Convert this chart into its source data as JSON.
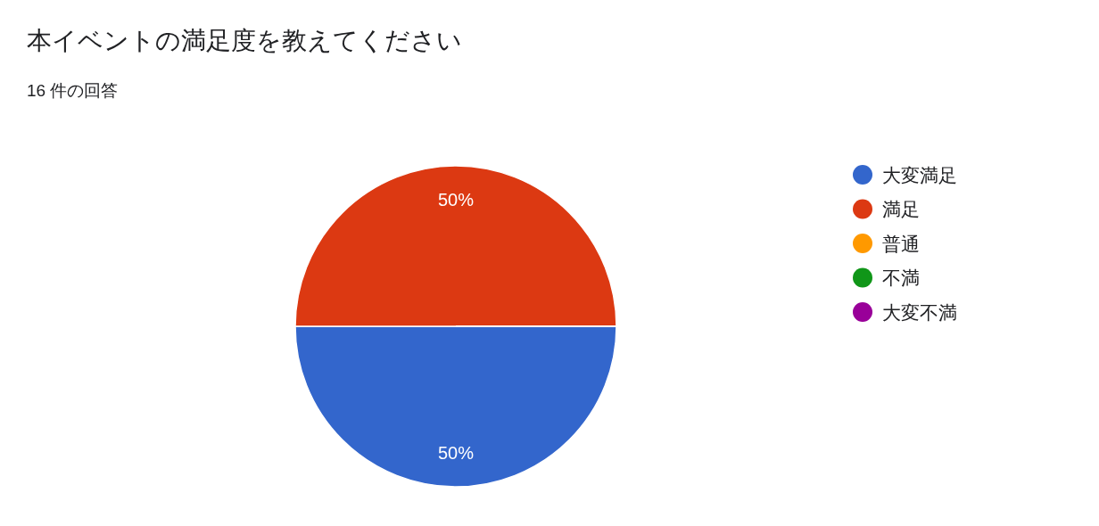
{
  "chart_data": {
    "type": "pie",
    "title": "本イベントの満足度を教えてください",
    "subtitle": "16 件の回答",
    "categories": [
      "大変満足",
      "満足",
      "普通",
      "不満",
      "大変不満"
    ],
    "values": [
      50,
      50,
      0,
      0,
      0
    ],
    "colors": [
      "#3366cc",
      "#dc3912",
      "#ff9900",
      "#109618",
      "#990099"
    ],
    "value_labels": [
      "50%",
      "50%",
      null,
      null,
      null
    ],
    "legend": "right"
  }
}
